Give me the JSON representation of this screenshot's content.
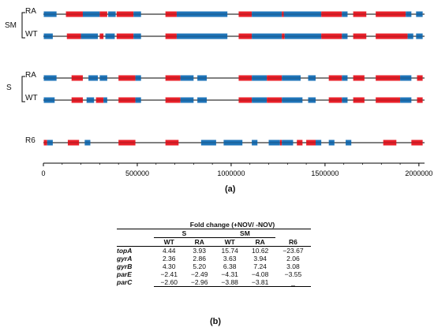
{
  "panel_a_label": "(a)",
  "panel_b_label": "(b)",
  "group_labels": {
    "sm": "SM",
    "s": "S"
  },
  "tracks": [
    {
      "label": "RA",
      "segments": [
        {
          "s": 2000,
          "e": 70000,
          "c": "blue"
        },
        {
          "s": 120000,
          "e": 210000,
          "c": "red"
        },
        {
          "s": 210000,
          "e": 300000,
          "c": "blue"
        },
        {
          "s": 300000,
          "e": 340000,
          "c": "red"
        },
        {
          "s": 345000,
          "e": 385000,
          "c": "blue"
        },
        {
          "s": 390000,
          "e": 480000,
          "c": "red"
        },
        {
          "s": 480000,
          "e": 520000,
          "c": "blue"
        },
        {
          "s": 650000,
          "e": 710000,
          "c": "red"
        },
        {
          "s": 710000,
          "e": 980000,
          "c": "blue"
        },
        {
          "s": 1040000,
          "e": 1110000,
          "c": "red"
        },
        {
          "s": 1110000,
          "e": 1270000,
          "c": "blue"
        },
        {
          "s": 1270000,
          "e": 1280000,
          "c": "red"
        },
        {
          "s": 1280000,
          "e": 1480000,
          "c": "blue"
        },
        {
          "s": 1480000,
          "e": 1590000,
          "c": "red"
        },
        {
          "s": 1590000,
          "e": 1620000,
          "c": "blue"
        },
        {
          "s": 1650000,
          "e": 1720000,
          "c": "red"
        },
        {
          "s": 1770000,
          "e": 1930000,
          "c": "red"
        },
        {
          "s": 1930000,
          "e": 1960000,
          "c": "blue"
        },
        {
          "s": 1985000,
          "e": 2020000,
          "c": "blue"
        }
      ]
    },
    {
      "label": "WT",
      "segments": [
        {
          "s": 2000,
          "e": 50000,
          "c": "blue"
        },
        {
          "s": 125000,
          "e": 200000,
          "c": "red"
        },
        {
          "s": 200000,
          "e": 290000,
          "c": "blue"
        },
        {
          "s": 300000,
          "e": 320000,
          "c": "red"
        },
        {
          "s": 330000,
          "e": 380000,
          "c": "blue"
        },
        {
          "s": 390000,
          "e": 480000,
          "c": "red"
        },
        {
          "s": 480000,
          "e": 520000,
          "c": "blue"
        },
        {
          "s": 650000,
          "e": 710000,
          "c": "red"
        },
        {
          "s": 710000,
          "e": 980000,
          "c": "blue"
        },
        {
          "s": 1040000,
          "e": 1110000,
          "c": "red"
        },
        {
          "s": 1110000,
          "e": 1270000,
          "c": "blue"
        },
        {
          "s": 1270000,
          "e": 1285000,
          "c": "red"
        },
        {
          "s": 1285000,
          "e": 1480000,
          "c": "blue"
        },
        {
          "s": 1480000,
          "e": 1590000,
          "c": "red"
        },
        {
          "s": 1590000,
          "e": 1620000,
          "c": "blue"
        },
        {
          "s": 1650000,
          "e": 1720000,
          "c": "red"
        },
        {
          "s": 1770000,
          "e": 1940000,
          "c": "red"
        },
        {
          "s": 1940000,
          "e": 1970000,
          "c": "blue"
        },
        {
          "s": 1985000,
          "e": 2020000,
          "c": "blue"
        }
      ]
    },
    {
      "label": "RA",
      "segments": [
        {
          "s": 2000,
          "e": 70000,
          "c": "blue"
        },
        {
          "s": 150000,
          "e": 210000,
          "c": "red"
        },
        {
          "s": 240000,
          "e": 290000,
          "c": "blue"
        },
        {
          "s": 300000,
          "e": 340000,
          "c": "blue"
        },
        {
          "s": 400000,
          "e": 490000,
          "c": "red"
        },
        {
          "s": 490000,
          "e": 520000,
          "c": "blue"
        },
        {
          "s": 650000,
          "e": 730000,
          "c": "red"
        },
        {
          "s": 730000,
          "e": 800000,
          "c": "blue"
        },
        {
          "s": 820000,
          "e": 870000,
          "c": "blue"
        },
        {
          "s": 1040000,
          "e": 1110000,
          "c": "red"
        },
        {
          "s": 1110000,
          "e": 1190000,
          "c": "blue"
        },
        {
          "s": 1190000,
          "e": 1270000,
          "c": "red"
        },
        {
          "s": 1270000,
          "e": 1370000,
          "c": "blue"
        },
        {
          "s": 1410000,
          "e": 1450000,
          "c": "blue"
        },
        {
          "s": 1520000,
          "e": 1590000,
          "c": "red"
        },
        {
          "s": 1590000,
          "e": 1620000,
          "c": "blue"
        },
        {
          "s": 1650000,
          "e": 1710000,
          "c": "red"
        },
        {
          "s": 1770000,
          "e": 1900000,
          "c": "red"
        },
        {
          "s": 1900000,
          "e": 1960000,
          "c": "blue"
        },
        {
          "s": 1990000,
          "e": 2020000,
          "c": "red"
        }
      ]
    },
    {
      "label": "WT",
      "segments": [
        {
          "s": 2000,
          "e": 60000,
          "c": "blue"
        },
        {
          "s": 150000,
          "e": 210000,
          "c": "red"
        },
        {
          "s": 230000,
          "e": 270000,
          "c": "blue"
        },
        {
          "s": 280000,
          "e": 320000,
          "c": "red"
        },
        {
          "s": 320000,
          "e": 340000,
          "c": "blue"
        },
        {
          "s": 400000,
          "e": 490000,
          "c": "red"
        },
        {
          "s": 490000,
          "e": 520000,
          "c": "blue"
        },
        {
          "s": 650000,
          "e": 730000,
          "c": "red"
        },
        {
          "s": 730000,
          "e": 800000,
          "c": "blue"
        },
        {
          "s": 820000,
          "e": 870000,
          "c": "blue"
        },
        {
          "s": 1040000,
          "e": 1110000,
          "c": "red"
        },
        {
          "s": 1110000,
          "e": 1190000,
          "c": "blue"
        },
        {
          "s": 1190000,
          "e": 1270000,
          "c": "red"
        },
        {
          "s": 1270000,
          "e": 1380000,
          "c": "blue"
        },
        {
          "s": 1410000,
          "e": 1450000,
          "c": "blue"
        },
        {
          "s": 1520000,
          "e": 1590000,
          "c": "red"
        },
        {
          "s": 1590000,
          "e": 1620000,
          "c": "blue"
        },
        {
          "s": 1650000,
          "e": 1710000,
          "c": "red"
        },
        {
          "s": 1770000,
          "e": 1900000,
          "c": "red"
        },
        {
          "s": 1900000,
          "e": 1960000,
          "c": "blue"
        },
        {
          "s": 1990000,
          "e": 2020000,
          "c": "red"
        }
      ]
    },
    {
      "label": "R6",
      "segments": [
        {
          "s": 2000,
          "e": 20000,
          "c": "red"
        },
        {
          "s": 20000,
          "e": 50000,
          "c": "blue"
        },
        {
          "s": 130000,
          "e": 190000,
          "c": "red"
        },
        {
          "s": 220000,
          "e": 250000,
          "c": "blue"
        },
        {
          "s": 400000,
          "e": 490000,
          "c": "red"
        },
        {
          "s": 650000,
          "e": 720000,
          "c": "red"
        },
        {
          "s": 840000,
          "e": 920000,
          "c": "blue"
        },
        {
          "s": 960000,
          "e": 1060000,
          "c": "blue"
        },
        {
          "s": 1110000,
          "e": 1140000,
          "c": "blue"
        },
        {
          "s": 1200000,
          "e": 1260000,
          "c": "blue"
        },
        {
          "s": 1260000,
          "e": 1270000,
          "c": "red"
        },
        {
          "s": 1270000,
          "e": 1330000,
          "c": "blue"
        },
        {
          "s": 1350000,
          "e": 1380000,
          "c": "red"
        },
        {
          "s": 1400000,
          "e": 1450000,
          "c": "red"
        },
        {
          "s": 1450000,
          "e": 1480000,
          "c": "blue"
        },
        {
          "s": 1520000,
          "e": 1550000,
          "c": "blue"
        },
        {
          "s": 1610000,
          "e": 1640000,
          "c": "blue"
        },
        {
          "s": 1810000,
          "e": 1880000,
          "c": "red"
        },
        {
          "s": 1960000,
          "e": 2020000,
          "c": "red"
        }
      ]
    }
  ],
  "axis": {
    "min": 0,
    "max": 2030000,
    "ticks": [
      {
        "value": 0,
        "label": "0"
      },
      {
        "value": 500000,
        "label": "500000"
      },
      {
        "value": 1000000,
        "label": "1000000"
      },
      {
        "value": 1500000,
        "label": "1500000"
      },
      {
        "value": 2000000,
        "label": "2000000"
      }
    ]
  },
  "colors": {
    "red": "#e8202a",
    "blue": "#1f74b8",
    "line": "#000000"
  },
  "table": {
    "title": "Fold change (+NOV/ -NOV)",
    "groups": [
      "S",
      "SM"
    ],
    "columns": [
      "WT",
      "RA",
      "WT",
      "RA",
      "R6"
    ],
    "rows": [
      {
        "gene": "topA",
        "values": [
          "4.44",
          "3.93",
          "15.74",
          "10.62",
          "−23.67"
        ]
      },
      {
        "gene": "gyrA",
        "values": [
          "2.36",
          "2.86",
          "3.63",
          "3.94",
          "2.06"
        ]
      },
      {
        "gene": "gyrB",
        "values": [
          "4.30",
          "5.20",
          "6.38",
          "7.24",
          "3.08"
        ]
      },
      {
        "gene": "parE",
        "values": [
          "−2.41",
          "−2.49",
          "−4.31",
          "−4.08",
          "−3.55"
        ]
      },
      {
        "gene": "parC",
        "values": [
          "−2.60",
          "−2.96",
          "−3.88",
          "−3.81",
          "_"
        ]
      }
    ]
  }
}
